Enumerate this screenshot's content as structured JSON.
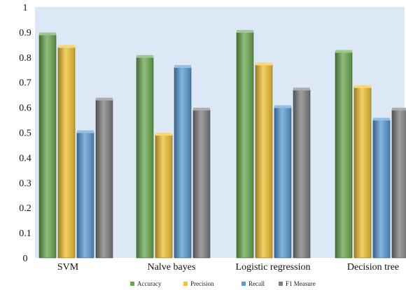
{
  "chart_data": {
    "type": "bar",
    "categories": [
      "SVM",
      "Nalve bayes",
      "Logistic regression",
      "Decision tree"
    ],
    "series": [
      {
        "name": "Accuracy",
        "values": [
          0.89,
          0.8,
          0.9,
          0.82
        ],
        "color": "#6aa84f"
      },
      {
        "name": "Precision",
        "values": [
          0.84,
          0.49,
          0.77,
          0.68
        ],
        "color": "#f1c232"
      },
      {
        "name": "Recall",
        "values": [
          0.5,
          0.76,
          0.6,
          0.55
        ],
        "color": "#5b9bd5"
      },
      {
        "name": "F1 Measure",
        "values": [
          0.63,
          0.59,
          0.67,
          0.59
        ],
        "color": "#7f7f7f"
      }
    ],
    "ylim": [
      0,
      1
    ],
    "yticks": [
      "0",
      "0.1",
      "0.2",
      "0.3",
      "0.4",
      "0.5",
      "0.6",
      "0.7",
      "0.8",
      "0.9",
      "1"
    ],
    "grid": false,
    "legend_position": "bottom",
    "plot_background": "#dce8f5",
    "title": "",
    "xlabel": "",
    "ylabel": ""
  }
}
